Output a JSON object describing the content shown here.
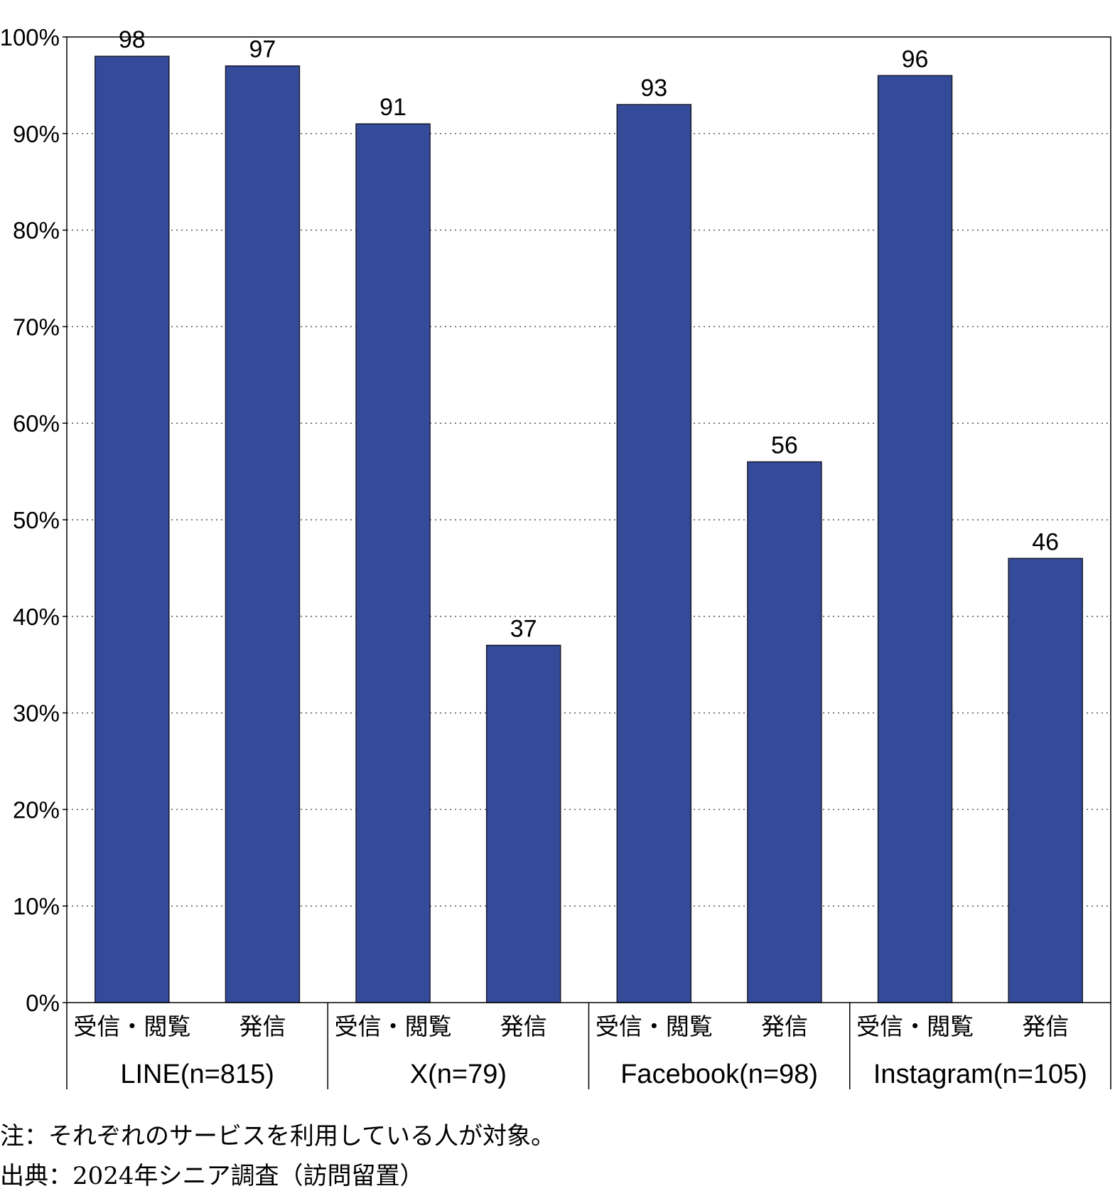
{
  "chart_data": {
    "type": "bar",
    "ylim": [
      0,
      100
    ],
    "y_ticks": [
      "0%",
      "10%",
      "20%",
      "30%",
      "40%",
      "50%",
      "60%",
      "70%",
      "80%",
      "90%",
      "100%"
    ],
    "grid": "horizontal dotted",
    "bar_color": "#334B99",
    "groups": [
      {
        "label": "LINE(n=815)",
        "bars": [
          {
            "label": "受信・閲覧",
            "value": 98
          },
          {
            "label": "発信",
            "value": 97
          }
        ]
      },
      {
        "label": "X(n=79)",
        "bars": [
          {
            "label": "受信・閲覧",
            "value": 91
          },
          {
            "label": "発信",
            "value": 37
          }
        ]
      },
      {
        "label": "Facebook(n=98)",
        "bars": [
          {
            "label": "受信・閲覧",
            "value": 93
          },
          {
            "label": "発信",
            "value": 56
          }
        ]
      },
      {
        "label": "Instagram(n=105)",
        "bars": [
          {
            "label": "受信・閲覧",
            "value": 96
          },
          {
            "label": "発信",
            "value": 46
          }
        ]
      }
    ]
  },
  "notes": {
    "note": "注：それぞれのサービスを利用している人が対象。",
    "source": "出典：2024年シニア調査（訪問留置）"
  }
}
